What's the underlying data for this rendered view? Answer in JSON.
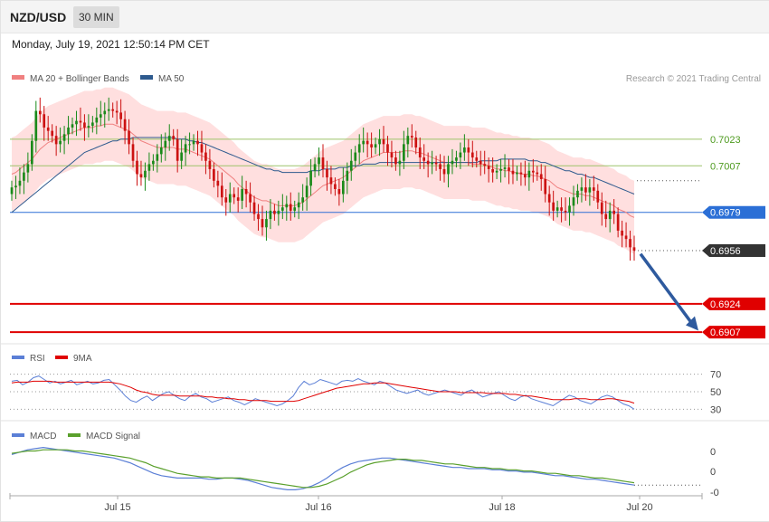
{
  "header": {
    "pair": "NZD/USD",
    "timeframe": "30 MIN",
    "datetime": "Monday, July 19, 2021 12:50:14 PM CET"
  },
  "legend": {
    "ma20": "MA 20 + Bollinger Bands",
    "ma50": "MA 50",
    "rsi": "RSI",
    "rsi_ma": "9MA",
    "macd": "MACD",
    "macd_signal": "MACD Signal",
    "credit": "Research © 2021 Trading Central"
  },
  "colors": {
    "ma20": "#f08080",
    "ma50": "#2e5a8e",
    "band": "#ffd4d4",
    "up": "#1a8a1a",
    "down": "#cc1111",
    "pivot": "#2b6fd6",
    "support": "#e00000",
    "last": "#333333",
    "rsi": "#5b7fd6",
    "rsi_ma": "#e00000",
    "macd": "#5b7fd6",
    "macd_signal": "#5aa02c",
    "resistance": "#9dc46a",
    "arrow": "#2e5a9e"
  },
  "chart_data": [
    {
      "type": "candlestick",
      "title": "NZD/USD",
      "x_ticks": [
        "Jul 15",
        "Jul 16",
        "Jul 18",
        "Jul 20"
      ],
      "y_range": [
        0.69,
        0.7055
      ],
      "levels": [
        {
          "value": 0.7023,
          "label": "0.7023",
          "kind": "resistance"
        },
        {
          "value": 0.7007,
          "label": "0.7007",
          "kind": "resistance"
        },
        {
          "value": 0.6979,
          "label": "0.6979",
          "kind": "pivot"
        },
        {
          "value": 0.6956,
          "label": "0.6956",
          "kind": "last"
        },
        {
          "value": 0.6924,
          "label": "0.6924",
          "kind": "support"
        },
        {
          "value": 0.6907,
          "label": "0.6907",
          "kind": "support"
        }
      ],
      "close": [
        0.6994,
        0.6995,
        0.6998,
        0.7003,
        0.7008,
        0.7022,
        0.704,
        0.7038,
        0.703,
        0.7028,
        0.7025,
        0.702,
        0.7022,
        0.7026,
        0.703,
        0.7032,
        0.7034,
        0.7033,
        0.703,
        0.7031,
        0.7033,
        0.7036,
        0.7038,
        0.704,
        0.7041,
        0.704,
        0.7039,
        0.7035,
        0.7028,
        0.702,
        0.701,
        0.7002,
        0.7,
        0.7004,
        0.7008,
        0.701,
        0.7014,
        0.7018,
        0.7022,
        0.7025,
        0.7023,
        0.701,
        0.7015,
        0.702,
        0.702,
        0.7022,
        0.702,
        0.7015,
        0.701,
        0.7005,
        0.6998,
        0.6995,
        0.6988,
        0.6985,
        0.699,
        0.6988,
        0.6986,
        0.6993,
        0.699,
        0.6985,
        0.6978,
        0.6975,
        0.697,
        0.6975,
        0.698,
        0.6978,
        0.698,
        0.6982,
        0.6984,
        0.698,
        0.6982,
        0.6985,
        0.6988,
        0.6995,
        0.7004,
        0.7008,
        0.7012,
        0.7005,
        0.7,
        0.6996,
        0.6993,
        0.699,
        0.6998,
        0.7004,
        0.701,
        0.7015,
        0.702,
        0.7022,
        0.702,
        0.7018,
        0.702,
        0.7023,
        0.702,
        0.7015,
        0.7012,
        0.7008,
        0.701,
        0.702,
        0.7025,
        0.7024,
        0.7018,
        0.7012,
        0.701,
        0.7008,
        0.7009,
        0.7008,
        0.7005,
        0.7002,
        0.7008,
        0.701,
        0.7012,
        0.7015,
        0.7018,
        0.7015,
        0.7012,
        0.701,
        0.7008,
        0.7007,
        0.7005,
        0.7003,
        0.7004,
        0.7005,
        0.7006,
        0.7004,
        0.7002,
        0.7003,
        0.7002,
        0.7,
        0.7004,
        0.7003,
        0.7002,
        0.6999,
        0.699,
        0.6985,
        0.698,
        0.6982,
        0.698,
        0.6979,
        0.6983,
        0.6988,
        0.6992,
        0.6994,
        0.6991,
        0.6994,
        0.6992,
        0.6985,
        0.6978,
        0.6975,
        0.698,
        0.6978,
        0.6968,
        0.6965,
        0.6963,
        0.6958,
        0.6956
      ],
      "ma20": [
        0.7002,
        0.7003,
        0.7005,
        0.7007,
        0.7009,
        0.7011,
        0.7014,
        0.7017,
        0.7019,
        0.7021,
        0.7022,
        0.7023,
        0.7024,
        0.7025,
        0.7026,
        0.7027,
        0.7028,
        0.7029,
        0.703,
        0.703,
        0.703,
        0.7031,
        0.7031,
        0.7032,
        0.7032,
        0.7032,
        0.7031,
        0.703,
        0.7029,
        0.7028,
        0.7026,
        0.7024,
        0.7022,
        0.7021,
        0.702,
        0.7019,
        0.7018,
        0.7018,
        0.7018,
        0.7018,
        0.7018,
        0.7017,
        0.7017,
        0.7017,
        0.7016,
        0.7015,
        0.7014,
        0.7013,
        0.7012,
        0.7011,
        0.7009,
        0.7007,
        0.7005,
        0.7003,
        0.7001,
        0.6999,
        0.6996,
        0.6994,
        0.6992,
        0.699,
        0.6988,
        0.6987,
        0.6986,
        0.6986,
        0.6985,
        0.6984,
        0.6983,
        0.6983,
        0.6983,
        0.6983,
        0.6983,
        0.6984,
        0.6985,
        0.6987,
        0.6989,
        0.6991,
        0.6993,
        0.6995,
        0.6996,
        0.6997,
        0.6998,
        0.6999,
        0.7,
        0.7002,
        0.7004,
        0.7006,
        0.7008,
        0.701,
        0.7011,
        0.7012,
        0.7013,
        0.7014,
        0.7015,
        0.7015,
        0.7015,
        0.7015,
        0.7015,
        0.7016,
        0.7016,
        0.7016,
        0.7015,
        0.7015,
        0.7014,
        0.7013,
        0.7012,
        0.7011,
        0.701,
        0.7009,
        0.7009,
        0.7009,
        0.7009,
        0.7009,
        0.7009,
        0.7009,
        0.7008,
        0.7008,
        0.7008,
        0.7008,
        0.7007,
        0.7006,
        0.7005,
        0.7005,
        0.7004,
        0.7004,
        0.7003,
        0.7003,
        0.7002,
        0.7002,
        0.7002,
        0.7001,
        0.7001,
        0.7,
        0.6999,
        0.6998,
        0.6996,
        0.6994,
        0.6993,
        0.6992,
        0.6991,
        0.699,
        0.699,
        0.699,
        0.6989,
        0.6989,
        0.6988,
        0.6987,
        0.6986,
        0.6985,
        0.6984,
        0.6983,
        0.6981,
        0.698,
        0.6979,
        0.6977,
        0.6976
      ],
      "ma50": [
        0.6979,
        0.6981,
        0.6983,
        0.6985,
        0.6987,
        0.6989,
        0.6991,
        0.6993,
        0.6995,
        0.6997,
        0.6999,
        0.7001,
        0.7003,
        0.7005,
        0.7007,
        0.7009,
        0.7011,
        0.7013,
        0.7015,
        0.7016,
        0.7017,
        0.7018,
        0.7019,
        0.702,
        0.7021,
        0.7022,
        0.7022,
        0.7023,
        0.7023,
        0.7023,
        0.7024,
        0.7024,
        0.7024,
        0.7024,
        0.7024,
        0.7024,
        0.7024,
        0.7024,
        0.7024,
        0.7024,
        0.7024,
        0.7023,
        0.7023,
        0.7023,
        0.7022,
        0.7022,
        0.7021,
        0.7021,
        0.702,
        0.7019,
        0.7018,
        0.7017,
        0.7016,
        0.7015,
        0.7014,
        0.7013,
        0.7012,
        0.7011,
        0.701,
        0.7009,
        0.7008,
        0.7007,
        0.7006,
        0.7005,
        0.7005,
        0.7004,
        0.7004,
        0.7003,
        0.7003,
        0.7003,
        0.7003,
        0.7003,
        0.7003,
        0.7003,
        0.7004,
        0.7004,
        0.7004,
        0.7005,
        0.7005,
        0.7005,
        0.7005,
        0.7006,
        0.7006,
        0.7006,
        0.7007,
        0.7007,
        0.7007,
        0.7008,
        0.7008,
        0.7008,
        0.7008,
        0.7009,
        0.7009,
        0.7009,
        0.7009,
        0.7009,
        0.7009,
        0.7009,
        0.7009,
        0.7009,
        0.7009,
        0.7009,
        0.7009,
        0.7009,
        0.7009,
        0.7009,
        0.7009,
        0.7009,
        0.7009,
        0.7009,
        0.7009,
        0.7009,
        0.7009,
        0.7009,
        0.7009,
        0.7009,
        0.701,
        0.701,
        0.701,
        0.701,
        0.701,
        0.7011,
        0.7011,
        0.7011,
        0.7011,
        0.7011,
        0.7011,
        0.7011,
        0.701,
        0.701,
        0.701,
        0.7009,
        0.7009,
        0.7008,
        0.7007,
        0.7006,
        0.7005,
        0.7004,
        0.7004,
        0.7003,
        0.7002,
        0.7002,
        0.7001,
        0.7,
        0.7,
        0.6999,
        0.6998,
        0.6997,
        0.6996,
        0.6995,
        0.6994,
        0.6993,
        0.6992,
        0.6991,
        0.699
      ],
      "band_width": 0.0022
    },
    {
      "type": "line",
      "title": "RSI",
      "y_ticks": [
        70,
        50,
        30
      ],
      "y_range": [
        20,
        80
      ],
      "series": [
        {
          "name": "RSI",
          "values": [
            62,
            63,
            58,
            61,
            66,
            68,
            64,
            60,
            62,
            59,
            61,
            63,
            58,
            60,
            62,
            59,
            60,
            63,
            64,
            58,
            52,
            45,
            40,
            38,
            42,
            45,
            40,
            44,
            48,
            50,
            46,
            42,
            40,
            45,
            48,
            44,
            42,
            38,
            40,
            42,
            44,
            40,
            38,
            35,
            38,
            42,
            40,
            38,
            36,
            34,
            36,
            40,
            45,
            55,
            62,
            58,
            60,
            64,
            62,
            60,
            58,
            62,
            63,
            62,
            65,
            62,
            60,
            58,
            62,
            60,
            56,
            52,
            50,
            48,
            50,
            52,
            48,
            46,
            48,
            50,
            52,
            50,
            48,
            46,
            50,
            52,
            48,
            44,
            46,
            48,
            50,
            46,
            42,
            40,
            44,
            46,
            42,
            40,
            38,
            36,
            34,
            38,
            42,
            46,
            44,
            40,
            38,
            36,
            40,
            44,
            46,
            44,
            40,
            36,
            34,
            30
          ]
        },
        {
          "name": "9MA",
          "values": [
            60,
            61,
            61,
            61,
            62,
            62,
            62,
            62,
            61,
            61,
            61,
            61,
            61,
            61,
            61,
            61,
            61,
            61,
            61,
            60,
            59,
            57,
            55,
            52,
            50,
            49,
            47,
            46,
            46,
            46,
            46,
            45,
            45,
            45,
            45,
            45,
            44,
            44,
            43,
            43,
            42,
            42,
            41,
            41,
            40,
            40,
            40,
            40,
            39,
            39,
            39,
            39,
            39,
            40,
            42,
            44,
            46,
            48,
            50,
            52,
            54,
            55,
            56,
            57,
            58,
            59,
            59,
            60,
            60,
            60,
            59,
            58,
            57,
            56,
            55,
            54,
            53,
            52,
            51,
            50,
            50,
            50,
            50,
            49,
            49,
            49,
            49,
            49,
            48,
            48,
            48,
            48,
            47,
            47,
            46,
            45,
            45,
            44,
            43,
            42,
            41,
            41,
            41,
            41,
            42,
            42,
            42,
            41,
            41,
            41,
            42,
            42,
            41,
            40,
            39,
            37
          ]
        }
      ]
    },
    {
      "type": "line",
      "title": "MACD",
      "y_ticks": [
        "0",
        "0",
        "-0"
      ],
      "series": [
        {
          "name": "MACD",
          "values": [
            10,
            12,
            14,
            15,
            16,
            15,
            14,
            13,
            12,
            11,
            10,
            9,
            8,
            7,
            5,
            3,
            0,
            -3,
            -6,
            -8,
            -9,
            -10,
            -10,
            -10,
            -10,
            -11,
            -11,
            -10,
            -10,
            -11,
            -12,
            -14,
            -16,
            -18,
            -19,
            -20,
            -20,
            -19,
            -17,
            -14,
            -10,
            -5,
            -1,
            2,
            4,
            5,
            6,
            7,
            7,
            6,
            5,
            4,
            3,
            2,
            1,
            0,
            -1,
            -1,
            -2,
            -2,
            -2,
            -3,
            -3,
            -4,
            -4,
            -5,
            -5,
            -6,
            -7,
            -8,
            -8,
            -9,
            -10,
            -11,
            -11,
            -12,
            -13,
            -14,
            -15,
            -16
          ]
        },
        {
          "name": "MACD Signal",
          "values": [
            11,
            12,
            13,
            13,
            14,
            14,
            14,
            14,
            13,
            13,
            12,
            11,
            10,
            9,
            8,
            7,
            5,
            3,
            0,
            -2,
            -4,
            -6,
            -7,
            -8,
            -9,
            -9,
            -10,
            -10,
            -10,
            -10,
            -11,
            -12,
            -13,
            -14,
            -15,
            -16,
            -17,
            -18,
            -18,
            -17,
            -15,
            -12,
            -9,
            -5,
            -2,
            1,
            3,
            4,
            5,
            6,
            6,
            5,
            5,
            4,
            3,
            2,
            2,
            1,
            0,
            -1,
            -1,
            -2,
            -2,
            -3,
            -3,
            -4,
            -4,
            -5,
            -6,
            -6,
            -7,
            -8,
            -8,
            -9,
            -10,
            -10,
            -11,
            -12,
            -13,
            -14
          ]
        }
      ]
    }
  ]
}
